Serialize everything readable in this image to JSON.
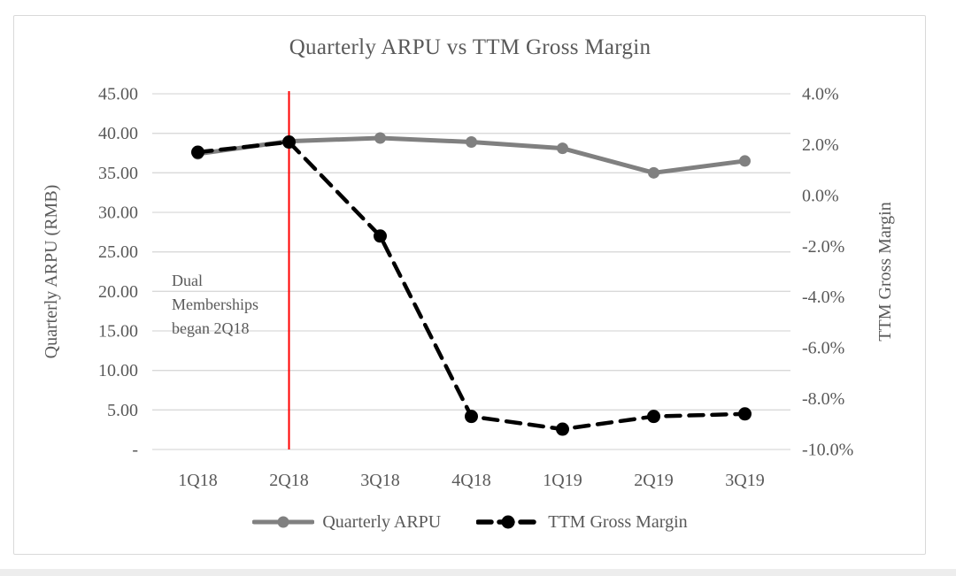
{
  "chart_data": {
    "type": "line",
    "title": "Quarterly ARPU vs TTM Gross Margin",
    "categories": [
      "1Q18",
      "2Q18",
      "3Q18",
      "4Q18",
      "1Q19",
      "2Q19",
      "3Q19"
    ],
    "series": [
      {
        "name": "Quarterly ARPU",
        "axis": "left",
        "color": "#808080",
        "line_style": "solid",
        "values": [
          37.4,
          39.0,
          39.4,
          38.9,
          38.1,
          35.0,
          36.5
        ]
      },
      {
        "name": "TTM Gross Margin",
        "axis": "right",
        "color": "#000000",
        "line_style": "dashed",
        "values": [
          1.7,
          2.1,
          -1.6,
          -8.7,
          -9.2,
          -8.7,
          -8.6
        ]
      }
    ],
    "left_axis": {
      "title": "Quarterly ARPU (RMB)",
      "min": 0,
      "max": 45,
      "tick_labels": [
        "45.00",
        "40.00",
        "35.00",
        "30.00",
        "25.00",
        "20.00",
        "15.00",
        "10.00",
        "5.00",
        "-"
      ]
    },
    "right_axis": {
      "title": "TTM Gross Margin",
      "min": -10,
      "max": 4,
      "tick_labels": [
        "4.0%",
        "2.0%",
        "0.0%",
        "-2.0%",
        "-4.0%",
        "-6.0%",
        "-8.0%",
        "-10.0%"
      ]
    },
    "annotation": {
      "lines": [
        "Dual",
        "Memberships",
        "began 2Q18"
      ],
      "color": "#ff0000",
      "at_category": "2Q18"
    },
    "legend_position": "bottom",
    "grid": true,
    "styles": {
      "text_color": "#595959",
      "gridline_color": "#d9d9d9",
      "frame_border_color": "#d9d9d9",
      "background": "#ffffff",
      "page_bottom_bar_color": "#ededed"
    }
  }
}
